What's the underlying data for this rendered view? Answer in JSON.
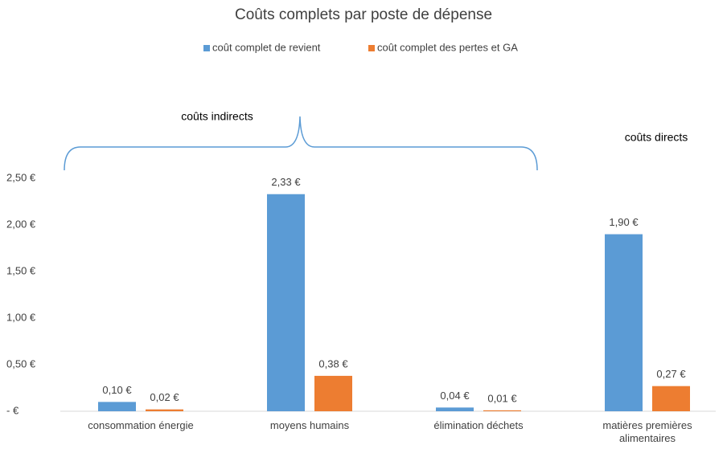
{
  "chart_data": {
    "type": "bar",
    "title": "Coûts complets par poste de dépense",
    "categories": [
      "consommation énergie",
      "moyens humains",
      "élimination déchets",
      "matières premières alimentaires"
    ],
    "series": [
      {
        "name": "coût complet de revient",
        "color": "#5b9bd5",
        "values": [
          0.1,
          2.33,
          0.04,
          1.9
        ],
        "value_labels": [
          "0,10 €",
          "2,33 €",
          "0,04 €",
          "1,90 €"
        ]
      },
      {
        "name": "coût complet des pertes et GA",
        "color": "#ed7d31",
        "values": [
          0.02,
          0.38,
          0.01,
          0.27
        ],
        "value_labels": [
          "0,02 €",
          "0,38 €",
          "0,01 €",
          "0,27 €"
        ]
      }
    ],
    "ylim": [
      0,
      2.5
    ],
    "yticks": [
      {
        "value": 0,
        "label": "-   €"
      },
      {
        "value": 0.5,
        "label": "0,50 €"
      },
      {
        "value": 1,
        "label": "1,00 €"
      },
      {
        "value": 1.5,
        "label": "1,50 €"
      },
      {
        "value": 2,
        "label": "2,00 €"
      },
      {
        "value": 2.5,
        "label": "2,50 €"
      }
    ],
    "annotations": [
      "coûts indirects",
      "coûts directs"
    ],
    "grid": false,
    "legend": "top"
  }
}
